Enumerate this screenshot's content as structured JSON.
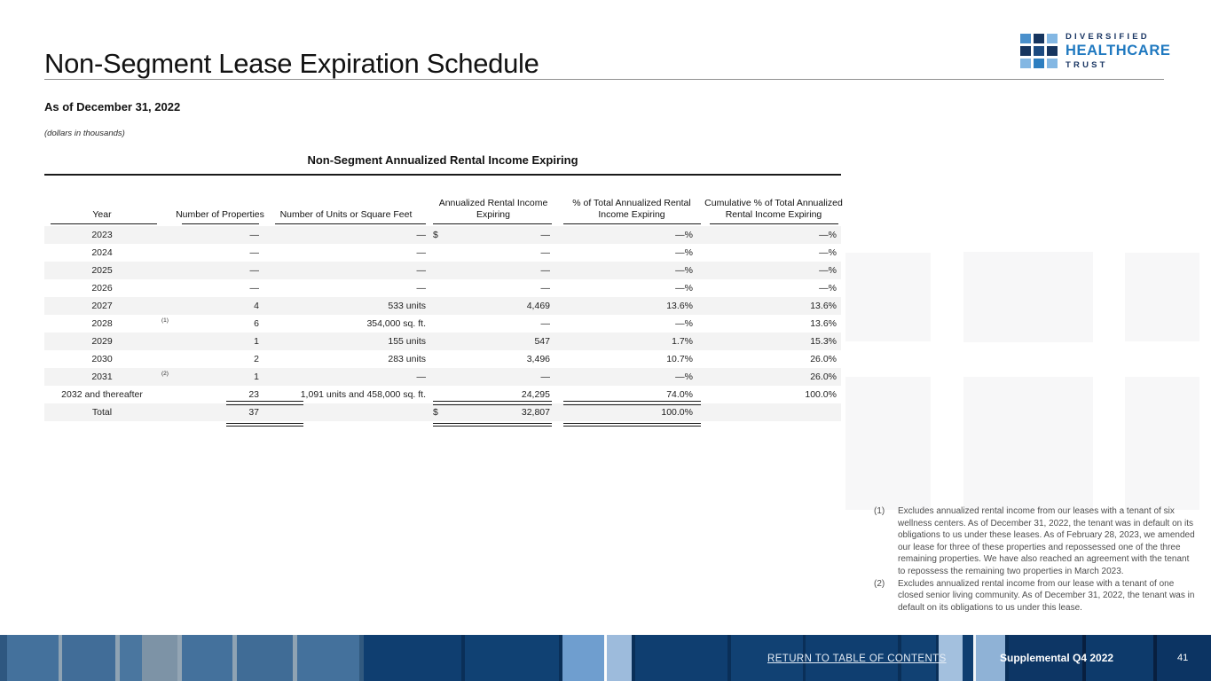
{
  "page": {
    "title": "Non-Segment Lease Expiration Schedule",
    "as_of": "As of December 31, 2022",
    "units_note": "(dollars in thousands)"
  },
  "logo": {
    "line1": "DIVERSIFIED",
    "line2": "HEALTHCARE",
    "line3": "TRUST",
    "grid_colors": [
      "#4a90cc",
      "#16355f",
      "#83b7e3",
      "#16355f",
      "#1c4a80",
      "#16355f",
      "#83b7e3",
      "#2d7ec0",
      "#83b7e3"
    ],
    "navy": "#1b3764",
    "blue": "#2079c0"
  },
  "table": {
    "title": "Non-Segment Annualized Rental Income Expiring",
    "columns": [
      "Year",
      "Number of Properties",
      "Number of Units or Square Feet",
      "Annualized Rental Income Expiring",
      "% of Total Annualized Rental Income Expiring",
      "Cumulative % of Total Annualized Rental Income Expiring"
    ],
    "stripe_color": "#f3f3f3",
    "rows": [
      {
        "year": "2023",
        "footnote": "",
        "properties": "—",
        "units": "—",
        "dollar": "$",
        "income": "—",
        "pct_total": "—%",
        "cumulative": "—%",
        "striped": true
      },
      {
        "year": "2024",
        "footnote": "",
        "properties": "—",
        "units": "—",
        "dollar": "",
        "income": "—",
        "pct_total": "—%",
        "cumulative": "—%",
        "striped": false
      },
      {
        "year": "2025",
        "footnote": "",
        "properties": "—",
        "units": "—",
        "dollar": "",
        "income": "—",
        "pct_total": "—%",
        "cumulative": "—%",
        "striped": true
      },
      {
        "year": "2026",
        "footnote": "",
        "properties": "—",
        "units": "—",
        "dollar": "",
        "income": "—",
        "pct_total": "—%",
        "cumulative": "—%",
        "striped": false
      },
      {
        "year": "2027",
        "footnote": "",
        "properties": "4",
        "units": "533 units",
        "dollar": "",
        "income": "4,469",
        "pct_total": "13.6%",
        "cumulative": "13.6%",
        "striped": true
      },
      {
        "year": "2028",
        "footnote": "(1)",
        "properties": "6",
        "units": "354,000 sq. ft.",
        "dollar": "",
        "income": "—",
        "pct_total": "—%",
        "cumulative": "13.6%",
        "striped": false
      },
      {
        "year": "2029",
        "footnote": "",
        "properties": "1",
        "units": "155 units",
        "dollar": "",
        "income": "547",
        "pct_total": "1.7%",
        "cumulative": "15.3%",
        "striped": true
      },
      {
        "year": "2030",
        "footnote": "",
        "properties": "2",
        "units": "283 units",
        "dollar": "",
        "income": "3,496",
        "pct_total": "10.7%",
        "cumulative": "26.0%",
        "striped": false
      },
      {
        "year": "2031",
        "footnote": "(2)",
        "properties": "1",
        "units": "—",
        "dollar": "",
        "income": "—",
        "pct_total": "—%",
        "cumulative": "26.0%",
        "striped": true
      },
      {
        "year": "2032 and thereafter",
        "footnote": "",
        "properties": "23",
        "units": "1,091 units and 458,000 sq. ft.",
        "dollar": "",
        "income": "24,295",
        "pct_total": "74.0%",
        "cumulative": "100.0%",
        "striped": false
      },
      {
        "year": "Total",
        "footnote": "",
        "properties": "37",
        "units": "",
        "dollar": "$",
        "income": "32,807",
        "pct_total": "100.0%",
        "cumulative": "",
        "striped": true
      }
    ]
  },
  "footnotes": [
    {
      "marker": "(1)",
      "text": "Excludes annualized rental income from our leases with a tenant of six wellness centers. As of December 31, 2022, the tenant was in default on its obligations to us under these leases. As of February 28, 2023, we amended our lease for three of these properties and repossessed one of the three remaining properties. We have also reached an agreement with the tenant to repossess the remaining two properties in March 2023."
    },
    {
      "marker": "(2)",
      "text": "Excludes annualized rental income from our lease with a tenant of one closed senior living community. As of December 31, 2022, the tenant was in default on its obligations to us under this lease."
    }
  ],
  "footer": {
    "link": "RETURN TO TABLE OF CONTENTS",
    "doc_label": "Supplemental Q4 2022",
    "page_number": "41",
    "navy": "#0f3e70"
  }
}
